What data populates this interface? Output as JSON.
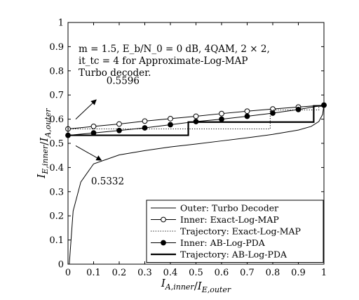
{
  "chart_data": {
    "type": "line",
    "title": "",
    "xlabel": "I_{A,inner}/I_{E,outer}",
    "ylabel": "I_{E,inner}/I_{A,outer}",
    "xlim": [
      0,
      1
    ],
    "ylim": [
      0,
      1
    ],
    "x_ticks": [
      0,
      0.1,
      0.2,
      0.3,
      0.4,
      0.5,
      0.6,
      0.7,
      0.8,
      0.9,
      1
    ],
    "y_ticks": [
      0,
      0.1,
      0.2,
      0.3,
      0.4,
      0.5,
      0.6,
      0.7,
      0.8,
      0.9,
      1
    ],
    "x_tick_labels": [
      "0",
      "0.1",
      "0.2",
      "0.3",
      "0.4",
      "0.5",
      "0.6",
      "0.7",
      "0.8",
      "0.9",
      "1"
    ],
    "y_tick_labels": [
      "0",
      "0.1",
      "0.2",
      "0.3",
      "0.4",
      "0.5",
      "0.6",
      "0.7",
      "0.8",
      "0.9",
      "1"
    ],
    "grid": false,
    "legend_position": "bottom-right",
    "info_lines": [
      "m = 1.5, E_b/N_0 = 0 dB, 4QAM, 2 × 2,",
      "it_tc = 4 for Approximate-Log-MAP",
      "Turbo decoder."
    ],
    "annotations": [
      {
        "text": "0.5596",
        "x": 0.0,
        "y": 0.5596,
        "text_x": 0.15,
        "text_y": 0.745
      },
      {
        "text": "0.5332",
        "x": 0.0,
        "y": 0.5332,
        "text_x": 0.09,
        "text_y": 0.33
      }
    ],
    "series": [
      {
        "name": "Outer: Turbo Decoder",
        "style": "solid",
        "color": "#000000",
        "x": [
          0.005,
          0.02,
          0.05,
          0.1,
          0.2,
          0.3,
          0.4,
          0.5,
          0.6,
          0.7,
          0.8,
          0.9,
          0.95,
          0.98,
          0.995,
          1.0
        ],
        "y": [
          0.0,
          0.22,
          0.34,
          0.415,
          0.452,
          0.47,
          0.485,
          0.497,
          0.51,
          0.523,
          0.537,
          0.555,
          0.57,
          0.59,
          0.62,
          0.66
        ]
      },
      {
        "name": "Inner: Exact-Log-MAP",
        "style": "solid",
        "marker": "open-circle",
        "color": "#000000",
        "x": [
          0,
          0.1,
          0.2,
          0.3,
          0.4,
          0.5,
          0.6,
          0.7,
          0.8,
          0.9,
          1.0
        ],
        "y": [
          0.5596,
          0.57,
          0.58,
          0.592,
          0.602,
          0.612,
          0.623,
          0.633,
          0.642,
          0.65,
          0.658
        ]
      },
      {
        "name": "Trajectory: Exact-Log-MAP",
        "style": "dotted",
        "color": "#000000",
        "x": [
          0.0,
          0.79,
          0.79,
          0.98,
          0.98
        ],
        "y": [
          0.5596,
          0.5596,
          0.638,
          0.638,
          0.655
        ]
      },
      {
        "name": "Inner: AB-Log-PDA",
        "style": "solid",
        "marker": "filled-circle",
        "color": "#000000",
        "x": [
          0,
          0.1,
          0.2,
          0.3,
          0.4,
          0.5,
          0.6,
          0.7,
          0.8,
          0.9,
          1.0
        ],
        "y": [
          0.5332,
          0.543,
          0.553,
          0.564,
          0.577,
          0.59,
          0.6,
          0.612,
          0.625,
          0.64,
          0.658
        ]
      },
      {
        "name": "Trajectory: AB-Log-PDA",
        "style": "solid-thick",
        "color": "#000000",
        "x": [
          0.0,
          0.47,
          0.47,
          0.96,
          0.96,
          0.99,
          0.99
        ],
        "y": [
          0.5332,
          0.5332,
          0.588,
          0.588,
          0.655,
          0.655,
          0.658
        ]
      }
    ]
  }
}
